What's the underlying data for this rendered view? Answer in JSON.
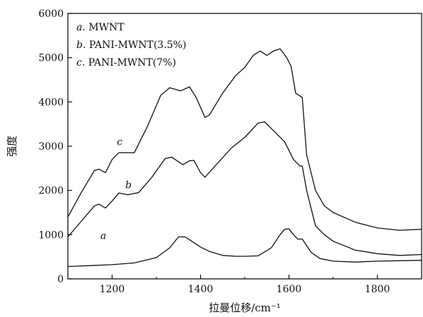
{
  "chart_data": {
    "type": "line",
    "xlabel": "拉曼位移/cm⁻¹",
    "ylabel": "强度",
    "xlim": [
      1100,
      1900
    ],
    "ylim": [
      0,
      6000
    ],
    "xticks": [
      1200,
      1400,
      1600,
      1800
    ],
    "yticks": [
      0,
      1000,
      2000,
      3000,
      4000,
      5000,
      6000
    ],
    "xtick_labels": [
      "1200",
      "1400",
      "1600",
      "1800"
    ],
    "ytick_labels": [
      "0",
      "1000",
      "2000",
      "3000",
      "4000",
      "5000",
      "6000"
    ],
    "grid": false,
    "legend": {
      "placement": "top-left",
      "entries": [
        {
          "letter": "a.",
          "text": "MWNT"
        },
        {
          "letter": "b.",
          "text": "PANI-MWNT(3.5%)"
        },
        {
          "letter": "c.",
          "text": "PANI-MWNT(7%)"
        }
      ]
    },
    "series": [
      {
        "name": "a",
        "tag_x": 1180,
        "tag_y": 900,
        "x": [
          1100,
          1150,
          1200,
          1250,
          1300,
          1330,
          1350,
          1365,
          1380,
          1400,
          1420,
          1450,
          1480,
          1500,
          1530,
          1560,
          1580,
          1590,
          1600,
          1610,
          1620,
          1630,
          1650,
          1670,
          1700,
          1750,
          1800,
          1850,
          1900
        ],
        "y": [
          280,
          300,
          320,
          360,
          480,
          700,
          950,
          950,
          850,
          720,
          620,
          530,
          510,
          510,
          520,
          700,
          1000,
          1120,
          1130,
          1000,
          900,
          900,
          600,
          460,
          400,
          380,
          400,
          410,
          420
        ]
      },
      {
        "name": "b",
        "tag_x": 1237,
        "tag_y": 2050,
        "x": [
          1100,
          1130,
          1160,
          1170,
          1185,
          1200,
          1215,
          1235,
          1260,
          1290,
          1320,
          1335,
          1360,
          1375,
          1385,
          1400,
          1410,
          1430,
          1470,
          1500,
          1530,
          1545,
          1560,
          1590,
          1610,
          1625,
          1630,
          1640,
          1660,
          1680,
          1700,
          1750,
          1800,
          1850,
          1900
        ],
        "y": [
          950,
          1300,
          1650,
          1690,
          1600,
          1760,
          1940,
          1900,
          1950,
          2300,
          2720,
          2750,
          2580,
          2670,
          2680,
          2400,
          2300,
          2520,
          2960,
          3200,
          3520,
          3550,
          3400,
          3100,
          2700,
          2550,
          2550,
          2000,
          1200,
          1000,
          850,
          650,
          570,
          530,
          550
        ]
      },
      {
        "name": "c",
        "tag_x": 1217,
        "tag_y": 3020,
        "x": [
          1100,
          1130,
          1160,
          1170,
          1185,
          1200,
          1215,
          1230,
          1250,
          1280,
          1310,
          1330,
          1355,
          1375,
          1390,
          1410,
          1420,
          1450,
          1480,
          1500,
          1520,
          1535,
          1550,
          1565,
          1580,
          1595,
          1605,
          1615,
          1630,
          1640,
          1660,
          1680,
          1700,
          1750,
          1800,
          1850,
          1900
        ],
        "y": [
          1400,
          1950,
          2450,
          2480,
          2400,
          2700,
          2850,
          2850,
          2850,
          3450,
          4150,
          4320,
          4250,
          4340,
          4100,
          3650,
          3700,
          4200,
          4600,
          4780,
          5060,
          5150,
          5050,
          5150,
          5200,
          5000,
          4800,
          4200,
          4100,
          2800,
          2000,
          1650,
          1500,
          1280,
          1150,
          1100,
          1120
        ]
      }
    ]
  }
}
